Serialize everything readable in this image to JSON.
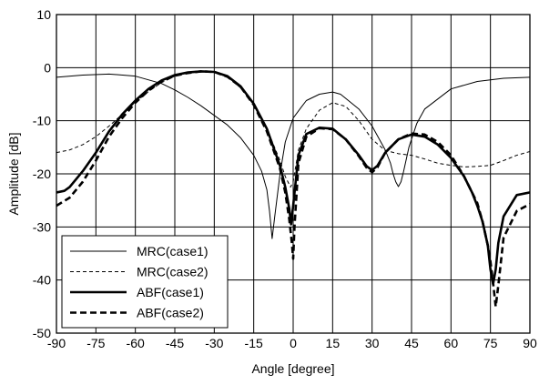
{
  "chart_data": {
    "type": "line",
    "title": "",
    "xlabel": "Angle [degree]",
    "ylabel": "Amplitude [dB]",
    "xlim": [
      -90,
      90
    ],
    "ylim": [
      -50,
      10
    ],
    "xticks": [
      -90,
      -75,
      -60,
      -45,
      -30,
      -15,
      0,
      15,
      30,
      45,
      60,
      75,
      90
    ],
    "yticks": [
      10,
      0,
      -10,
      -20,
      -30,
      -40,
      -50
    ],
    "grid": true,
    "legend_position": "bottom-left",
    "series": [
      {
        "name": "MRC(case1)",
        "style": "solid-thin",
        "color": "#000000",
        "x": [
          -90,
          -80,
          -70,
          -60,
          -50,
          -45,
          -40,
          -35,
          -30,
          -25,
          -20,
          -15,
          -12,
          -10,
          -9,
          -8,
          -7,
          -5,
          -3,
          0,
          3,
          5,
          10,
          15,
          18,
          20,
          25,
          30,
          35,
          37,
          38,
          39,
          40,
          41,
          42,
          44,
          47,
          50,
          60,
          70,
          80,
          90
        ],
        "y": [
          -1.8,
          -1.4,
          -1.2,
          -1.6,
          -3.0,
          -4.2,
          -5.6,
          -7.2,
          -9.0,
          -10.8,
          -13.2,
          -16.5,
          -19.5,
          -23.0,
          -27.0,
          -32.2,
          -28.0,
          -20.0,
          -14.0,
          -9.5,
          -7.5,
          -6.2,
          -5.0,
          -4.6,
          -5.0,
          -5.8,
          -7.8,
          -11.0,
          -15.5,
          -18.0,
          -20.0,
          -21.5,
          -22.4,
          -21.5,
          -19.5,
          -15.0,
          -10.5,
          -7.8,
          -4.0,
          -2.6,
          -2.0,
          -1.8
        ]
      },
      {
        "name": "MRC(case2)",
        "style": "dashed-thin",
        "color": "#000000",
        "x": [
          -90,
          -85,
          -80,
          -75,
          -70,
          -65,
          -60,
          -55,
          -50,
          -45,
          -40,
          -35,
          -30,
          -25,
          -20,
          -15,
          -10,
          -5,
          -3,
          -1,
          0,
          2,
          5,
          10,
          15,
          20,
          25,
          30,
          35,
          40,
          45,
          50,
          55,
          60,
          65,
          70,
          75,
          80,
          85,
          90
        ],
        "y": [
          -16.0,
          -15.5,
          -14.5,
          -13.0,
          -11.0,
          -8.8,
          -6.5,
          -4.5,
          -2.8,
          -1.6,
          -0.9,
          -0.6,
          -0.8,
          -1.8,
          -3.8,
          -7.0,
          -11.5,
          -17.5,
          -20.5,
          -22.5,
          -21.5,
          -15.5,
          -11.5,
          -8.0,
          -6.6,
          -7.3,
          -10.0,
          -13.5,
          -15.6,
          -16.2,
          -16.5,
          -17.2,
          -18.0,
          -18.4,
          -18.7,
          -18.6,
          -18.4,
          -17.5,
          -16.5,
          -15.8
        ]
      },
      {
        "name": "ABF(case1)",
        "style": "solid-thick",
        "color": "#000000",
        "x": [
          -90,
          -87,
          -85,
          -80,
          -75,
          -70,
          -65,
          -60,
          -55,
          -50,
          -45,
          -40,
          -35,
          -30,
          -25,
          -20,
          -15,
          -10,
          -5,
          -3,
          -1.5,
          -0.8,
          0,
          2,
          5,
          10,
          15,
          20,
          25,
          28,
          30,
          32,
          35,
          40,
          45,
          50,
          55,
          60,
          65,
          68,
          70,
          72,
          74,
          75,
          76,
          77,
          78,
          80,
          85,
          90
        ],
        "y": [
          -23.5,
          -23.2,
          -22.5,
          -19.5,
          -16.0,
          -12.0,
          -8.8,
          -6.2,
          -4.0,
          -2.4,
          -1.4,
          -0.9,
          -0.7,
          -0.8,
          -1.6,
          -3.5,
          -6.8,
          -11.5,
          -18.5,
          -22.5,
          -26.5,
          -29.5,
          -26.0,
          -16.5,
          -12.5,
          -11.3,
          -11.5,
          -13.5,
          -16.5,
          -18.6,
          -19.3,
          -18.5,
          -16.0,
          -13.5,
          -12.6,
          -13.0,
          -14.5,
          -17.0,
          -20.5,
          -23.5,
          -26.0,
          -29.0,
          -33.5,
          -38.0,
          -40.8,
          -38.0,
          -33.0,
          -28.0,
          -24.0,
          -23.5
        ]
      },
      {
        "name": "ABF(case2)",
        "style": "dashed-thick",
        "color": "#000000",
        "x": [
          -90,
          -85,
          -80,
          -75,
          -70,
          -65,
          -60,
          -55,
          -50,
          -45,
          -40,
          -35,
          -30,
          -25,
          -20,
          -15,
          -10,
          -5,
          -3,
          -1.5,
          -0.5,
          0,
          0.5,
          2,
          5,
          10,
          15,
          20,
          25,
          28,
          30,
          32,
          35,
          40,
          45,
          50,
          55,
          60,
          65,
          70,
          72,
          74,
          75,
          76,
          77,
          78,
          80,
          85,
          90
        ],
        "y": [
          -26.0,
          -24.5,
          -21.5,
          -17.5,
          -13.0,
          -9.5,
          -6.6,
          -4.3,
          -2.6,
          -1.5,
          -1.0,
          -0.7,
          -0.8,
          -1.7,
          -3.6,
          -7.0,
          -12.0,
          -19.0,
          -23.5,
          -28.5,
          -33.0,
          -36.0,
          -30.0,
          -18.0,
          -13.0,
          -11.4,
          -11.6,
          -13.5,
          -16.7,
          -18.9,
          -19.7,
          -18.8,
          -16.0,
          -13.5,
          -12.4,
          -12.6,
          -14.0,
          -16.5,
          -20.5,
          -25.5,
          -29.0,
          -33.5,
          -36.5,
          -40.5,
          -45.0,
          -41.0,
          -32.0,
          -27.0,
          -25.7
        ]
      }
    ]
  }
}
